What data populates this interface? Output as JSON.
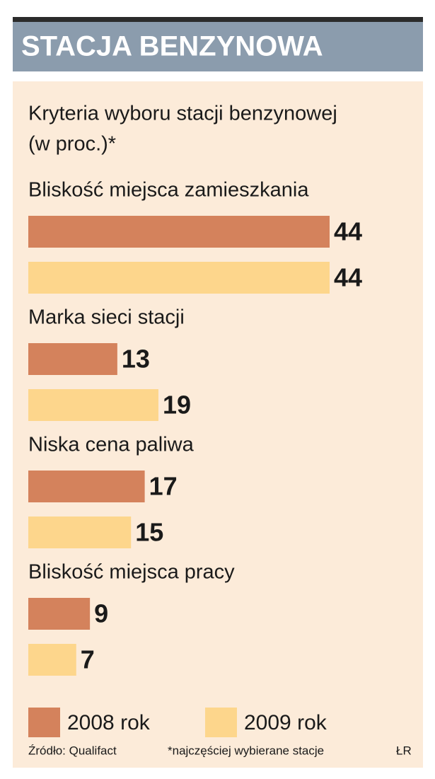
{
  "chart_data": {
    "type": "bar",
    "orientation": "horizontal",
    "title": "STACJA BENZYNOWA",
    "subtitle": [
      "Kryteria wyboru stacji benzynowej",
      "(w proc.)*"
    ],
    "categories": [
      "Bliskość miejsca zamieszkania",
      "Marka sieci stacji",
      "Niska cena paliwa",
      "Bliskość miejsca pracy"
    ],
    "series": [
      {
        "name": "2008 rok",
        "color": "#d4825c",
        "values": [
          44,
          13,
          17,
          9
        ]
      },
      {
        "name": "2009 rok",
        "color": "#fdd68c",
        "values": [
          44,
          19,
          15,
          7
        ]
      }
    ],
    "source": "Źródło: Qualifact",
    "note": "*najczęściej wybierane stacje",
    "credit": "ŁR"
  }
}
